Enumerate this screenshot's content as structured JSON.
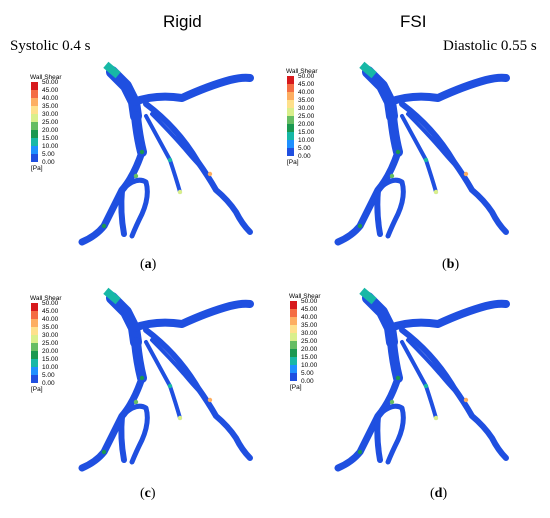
{
  "headers": {
    "left": "Rigid",
    "right": "FSI"
  },
  "notes": {
    "left": "Systolic 0.4 s",
    "right": "Diastolic 0.55 s"
  },
  "captions": [
    {
      "open": "(",
      "letter": "a",
      "close": ")"
    },
    {
      "open": "(",
      "letter": "b",
      "close": ")"
    },
    {
      "open": "(",
      "letter": "c",
      "close": ")"
    },
    {
      "open": "(",
      "letter": "d",
      "close": ")"
    }
  ],
  "legend": {
    "title": "Wall Shear",
    "unit": "[Pa]",
    "ticks": [
      "50.00",
      "45.00",
      "40.00",
      "35.00",
      "30.00",
      "25.00",
      "20.00",
      "15.00",
      "10.00",
      "5.00",
      "0.00"
    ],
    "colors": [
      "#d7191c",
      "#f46d43",
      "#fdae61",
      "#fee08b",
      "#d9ef8b",
      "#66bd63",
      "#1a9850",
      "#17b8a6",
      "#1e90ff",
      "#1f4fe0"
    ]
  },
  "colors": {
    "vessel": "#1f4fe0",
    "border": "#222222"
  }
}
